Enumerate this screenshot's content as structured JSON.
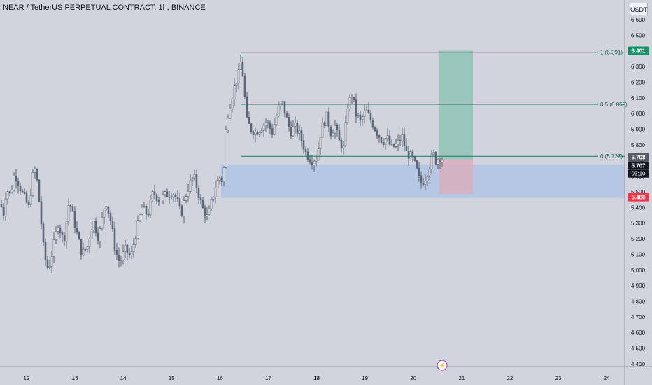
{
  "title": "NEAR / TetherUS PERPETUAL CONTRACT, 1h, BINANCE",
  "currency": "USDT",
  "colors": {
    "background": "#d1d4dc",
    "candle": "#5d6675",
    "level_line": "#1e7a62",
    "target_zone": "#8fc4b6",
    "stop_zone": "#d8aebd",
    "support_zone": "#b2c4e4",
    "target_badge": "#129669",
    "stop_badge": "#f23645",
    "price_badge": "#131722",
    "close_badge": "#555a66"
  },
  "chart_data": {
    "type": "candlestick",
    "x_tick_labels": [
      "12",
      "13",
      "14",
      "15",
      "16",
      "17",
      "18",
      "19",
      "20",
      "21",
      "22",
      "23",
      "24"
    ],
    "y_tick_labels": [
      "6.600",
      "6.500",
      "6.400",
      "6.300",
      "6.200",
      "6.100",
      "6.000",
      "5.900",
      "5.800",
      "5.700",
      "5.600",
      "5.500",
      "5.400",
      "5.300",
      "5.200",
      "5.100",
      "5.000",
      "4.900",
      "4.800",
      "4.700",
      "4.600",
      "4.500",
      "4.400"
    ],
    "ylim": [
      4.37,
      6.68
    ],
    "fib_levels": [
      {
        "label": "1 (6.391)",
        "value": 6.391
      },
      {
        "label": "0.5 (6.059)",
        "value": 6.059
      },
      {
        "label": "0 (5.727)",
        "value": 5.727
      }
    ],
    "support_zone": {
      "low": 5.46,
      "high": 5.675
    },
    "position": {
      "entry": 5.707,
      "target": 6.401,
      "stop": 5.488
    },
    "price_labels": {
      "target": "6.401",
      "close": "5.708",
      "last": "5.707",
      "countdown": "03:10",
      "stop": "5.488"
    },
    "event_marker": "⚡",
    "anchors": [
      [
        0,
        5.42
      ],
      [
        4,
        5.36
      ],
      [
        8,
        5.52
      ],
      [
        14,
        5.48
      ],
      [
        20,
        5.62
      ],
      [
        30,
        5.5
      ],
      [
        40,
        5.4
      ],
      [
        46,
        5.6
      ],
      [
        50,
        5.65
      ],
      [
        56,
        5.4
      ],
      [
        62,
        5.1
      ],
      [
        68,
        5.0
      ],
      [
        74,
        5.12
      ],
      [
        82,
        5.3
      ],
      [
        90,
        5.18
      ],
      [
        98,
        5.45
      ],
      [
        108,
        5.25
      ],
      [
        116,
        5.1
      ],
      [
        124,
        5.15
      ],
      [
        132,
        5.32
      ],
      [
        140,
        5.2
      ],
      [
        150,
        5.45
      ],
      [
        158,
        5.3
      ],
      [
        164,
        5.12
      ],
      [
        170,
        5.05
      ],
      [
        178,
        5.13
      ],
      [
        186,
        5.08
      ],
      [
        194,
        5.25
      ],
      [
        202,
        5.4
      ],
      [
        210,
        5.35
      ],
      [
        218,
        5.5
      ],
      [
        226,
        5.45
      ],
      [
        236,
        5.48
      ],
      [
        246,
        5.5
      ],
      [
        252,
        5.45
      ],
      [
        258,
        5.35
      ],
      [
        264,
        5.47
      ],
      [
        270,
        5.55
      ],
      [
        276,
        5.6
      ],
      [
        282,
        5.5
      ],
      [
        288,
        5.4
      ],
      [
        296,
        5.33
      ],
      [
        302,
        5.45
      ],
      [
        308,
        5.55
      ],
      [
        314,
        5.6
      ],
      [
        318,
        5.55
      ],
      [
        321,
        5.85
      ],
      [
        325,
        6.0
      ],
      [
        330,
        6.1
      ],
      [
        336,
        6.2
      ],
      [
        340,
        6.25
      ],
      [
        344,
        6.35
      ],
      [
        348,
        6.15
      ],
      [
        352,
        5.95
      ],
      [
        358,
        5.9
      ],
      [
        364,
        5.88
      ],
      [
        370,
        5.9
      ],
      [
        380,
        5.95
      ],
      [
        388,
        5.88
      ],
      [
        396,
        6.02
      ],
      [
        402,
        6.08
      ],
      [
        408,
        5.98
      ],
      [
        414,
        5.88
      ],
      [
        420,
        5.92
      ],
      [
        428,
        5.86
      ],
      [
        436,
        5.75
      ],
      [
        444,
        5.7
      ],
      [
        452,
        5.72
      ],
      [
        458,
        5.9
      ],
      [
        466,
        5.98
      ],
      [
        472,
        5.88
      ],
      [
        478,
        5.92
      ],
      [
        484,
        5.82
      ],
      [
        490,
        5.78
      ],
      [
        496,
        6.05
      ],
      [
        502,
        6.12
      ],
      [
        508,
        6.0
      ],
      [
        514,
        5.95
      ],
      [
        522,
        6.02
      ],
      [
        530,
        5.95
      ],
      [
        538,
        5.88
      ],
      [
        546,
        5.82
      ],
      [
        552,
        5.85
      ],
      [
        558,
        5.78
      ],
      [
        566,
        5.8
      ],
      [
        574,
        5.85
      ],
      [
        580,
        5.75
      ],
      [
        588,
        5.72
      ],
      [
        594,
        5.65
      ],
      [
        600,
        5.55
      ],
      [
        606,
        5.58
      ],
      [
        612,
        5.65
      ],
      [
        618,
        5.75
      ],
      [
        622,
        5.7
      ],
      [
        628,
        5.72
      ],
      [
        632,
        5.707
      ]
    ]
  }
}
